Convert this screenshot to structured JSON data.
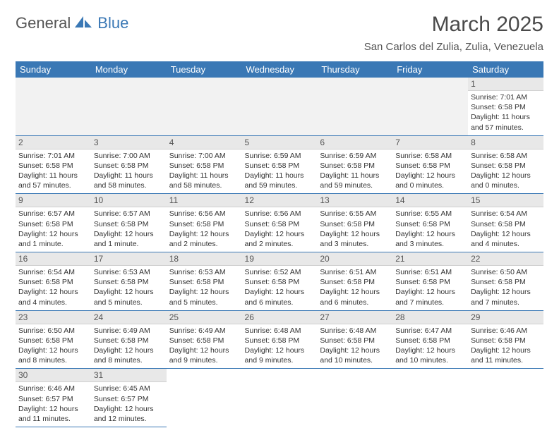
{
  "colors": {
    "brand_blue": "#3a78b5",
    "header_bg": "#3a78b5",
    "header_text": "#ffffff",
    "daynum_bg": "#e8e8e8",
    "row_divider": "#3a78b5",
    "text": "#333333",
    "muted": "#555555",
    "background": "#ffffff"
  },
  "fonts": {
    "base_family": "Arial",
    "title_size_pt": 22,
    "subtitle_size_pt": 11,
    "cell_size_pt": 8
  },
  "logo": {
    "part1": "General",
    "part2": "Blue"
  },
  "title": "March 2025",
  "subtitle": "San Carlos del Zulia, Zulia, Venezuela",
  "weekdays": [
    "Sunday",
    "Monday",
    "Tuesday",
    "Wednesday",
    "Thursday",
    "Friday",
    "Saturday"
  ],
  "calendar": {
    "type": "table",
    "columns": 7,
    "rows": 6,
    "first_weekday_index": 6,
    "days": [
      {
        "n": "1",
        "sunrise": "Sunrise: 7:01 AM",
        "sunset": "Sunset: 6:58 PM",
        "daylight": "Daylight: 11 hours and 57 minutes."
      },
      {
        "n": "2",
        "sunrise": "Sunrise: 7:01 AM",
        "sunset": "Sunset: 6:58 PM",
        "daylight": "Daylight: 11 hours and 57 minutes."
      },
      {
        "n": "3",
        "sunrise": "Sunrise: 7:00 AM",
        "sunset": "Sunset: 6:58 PM",
        "daylight": "Daylight: 11 hours and 58 minutes."
      },
      {
        "n": "4",
        "sunrise": "Sunrise: 7:00 AM",
        "sunset": "Sunset: 6:58 PM",
        "daylight": "Daylight: 11 hours and 58 minutes."
      },
      {
        "n": "5",
        "sunrise": "Sunrise: 6:59 AM",
        "sunset": "Sunset: 6:58 PM",
        "daylight": "Daylight: 11 hours and 59 minutes."
      },
      {
        "n": "6",
        "sunrise": "Sunrise: 6:59 AM",
        "sunset": "Sunset: 6:58 PM",
        "daylight": "Daylight: 11 hours and 59 minutes."
      },
      {
        "n": "7",
        "sunrise": "Sunrise: 6:58 AM",
        "sunset": "Sunset: 6:58 PM",
        "daylight": "Daylight: 12 hours and 0 minutes."
      },
      {
        "n": "8",
        "sunrise": "Sunrise: 6:58 AM",
        "sunset": "Sunset: 6:58 PM",
        "daylight": "Daylight: 12 hours and 0 minutes."
      },
      {
        "n": "9",
        "sunrise": "Sunrise: 6:57 AM",
        "sunset": "Sunset: 6:58 PM",
        "daylight": "Daylight: 12 hours and 1 minute."
      },
      {
        "n": "10",
        "sunrise": "Sunrise: 6:57 AM",
        "sunset": "Sunset: 6:58 PM",
        "daylight": "Daylight: 12 hours and 1 minute."
      },
      {
        "n": "11",
        "sunrise": "Sunrise: 6:56 AM",
        "sunset": "Sunset: 6:58 PM",
        "daylight": "Daylight: 12 hours and 2 minutes."
      },
      {
        "n": "12",
        "sunrise": "Sunrise: 6:56 AM",
        "sunset": "Sunset: 6:58 PM",
        "daylight": "Daylight: 12 hours and 2 minutes."
      },
      {
        "n": "13",
        "sunrise": "Sunrise: 6:55 AM",
        "sunset": "Sunset: 6:58 PM",
        "daylight": "Daylight: 12 hours and 3 minutes."
      },
      {
        "n": "14",
        "sunrise": "Sunrise: 6:55 AM",
        "sunset": "Sunset: 6:58 PM",
        "daylight": "Daylight: 12 hours and 3 minutes."
      },
      {
        "n": "15",
        "sunrise": "Sunrise: 6:54 AM",
        "sunset": "Sunset: 6:58 PM",
        "daylight": "Daylight: 12 hours and 4 minutes."
      },
      {
        "n": "16",
        "sunrise": "Sunrise: 6:54 AM",
        "sunset": "Sunset: 6:58 PM",
        "daylight": "Daylight: 12 hours and 4 minutes."
      },
      {
        "n": "17",
        "sunrise": "Sunrise: 6:53 AM",
        "sunset": "Sunset: 6:58 PM",
        "daylight": "Daylight: 12 hours and 5 minutes."
      },
      {
        "n": "18",
        "sunrise": "Sunrise: 6:53 AM",
        "sunset": "Sunset: 6:58 PM",
        "daylight": "Daylight: 12 hours and 5 minutes."
      },
      {
        "n": "19",
        "sunrise": "Sunrise: 6:52 AM",
        "sunset": "Sunset: 6:58 PM",
        "daylight": "Daylight: 12 hours and 6 minutes."
      },
      {
        "n": "20",
        "sunrise": "Sunrise: 6:51 AM",
        "sunset": "Sunset: 6:58 PM",
        "daylight": "Daylight: 12 hours and 6 minutes."
      },
      {
        "n": "21",
        "sunrise": "Sunrise: 6:51 AM",
        "sunset": "Sunset: 6:58 PM",
        "daylight": "Daylight: 12 hours and 7 minutes."
      },
      {
        "n": "22",
        "sunrise": "Sunrise: 6:50 AM",
        "sunset": "Sunset: 6:58 PM",
        "daylight": "Daylight: 12 hours and 7 minutes."
      },
      {
        "n": "23",
        "sunrise": "Sunrise: 6:50 AM",
        "sunset": "Sunset: 6:58 PM",
        "daylight": "Daylight: 12 hours and 8 minutes."
      },
      {
        "n": "24",
        "sunrise": "Sunrise: 6:49 AM",
        "sunset": "Sunset: 6:58 PM",
        "daylight": "Daylight: 12 hours and 8 minutes."
      },
      {
        "n": "25",
        "sunrise": "Sunrise: 6:49 AM",
        "sunset": "Sunset: 6:58 PM",
        "daylight": "Daylight: 12 hours and 9 minutes."
      },
      {
        "n": "26",
        "sunrise": "Sunrise: 6:48 AM",
        "sunset": "Sunset: 6:58 PM",
        "daylight": "Daylight: 12 hours and 9 minutes."
      },
      {
        "n": "27",
        "sunrise": "Sunrise: 6:48 AM",
        "sunset": "Sunset: 6:58 PM",
        "daylight": "Daylight: 12 hours and 10 minutes."
      },
      {
        "n": "28",
        "sunrise": "Sunrise: 6:47 AM",
        "sunset": "Sunset: 6:58 PM",
        "daylight": "Daylight: 12 hours and 10 minutes."
      },
      {
        "n": "29",
        "sunrise": "Sunrise: 6:46 AM",
        "sunset": "Sunset: 6:58 PM",
        "daylight": "Daylight: 12 hours and 11 minutes."
      },
      {
        "n": "30",
        "sunrise": "Sunrise: 6:46 AM",
        "sunset": "Sunset: 6:57 PM",
        "daylight": "Daylight: 12 hours and 11 minutes."
      },
      {
        "n": "31",
        "sunrise": "Sunrise: 6:45 AM",
        "sunset": "Sunset: 6:57 PM",
        "daylight": "Daylight: 12 hours and 12 minutes."
      }
    ]
  }
}
